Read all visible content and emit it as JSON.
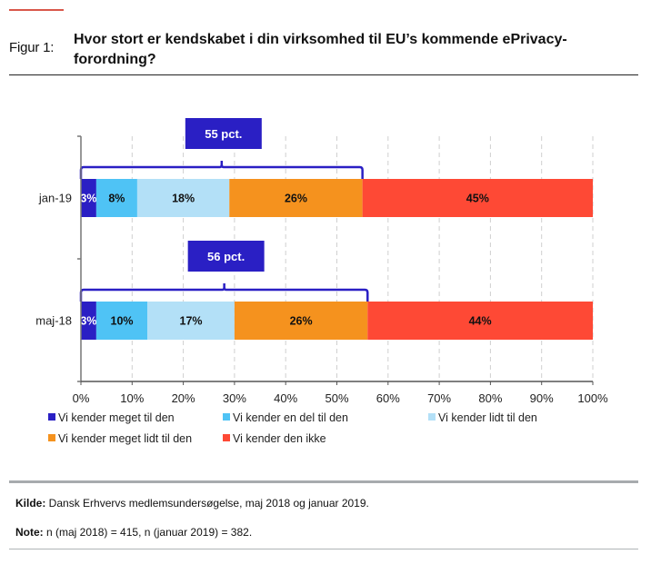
{
  "figure": {
    "label": "Figur 1:",
    "title": "Hvor stort er kendskabet i din virksomhed til EU’s kommende ePrivacy-forordning?",
    "title_line1": "Hvor stort er kendskabet i din virksomhed til EU’s kommende ePrivacy-",
    "title_line2": "forordning?"
  },
  "chart_data": {
    "type": "bar",
    "orientation": "horizontal",
    "stacked": true,
    "title": "Hvor stort er kendskabet i din virksomhed til EU’s kommende ePrivacy-forordning?",
    "xlabel": "",
    "ylabel": "",
    "xlim": [
      0,
      100
    ],
    "x_ticks": [
      "0%",
      "10%",
      "20%",
      "30%",
      "40%",
      "50%",
      "60%",
      "70%",
      "80%",
      "90%",
      "100%"
    ],
    "grid": "vertical-dashed",
    "categories": [
      "jan-19",
      "maj-18"
    ],
    "series": [
      {
        "name": "Vi kender meget til den",
        "color": "#2a1fc4",
        "label_color": "#ffffff",
        "values": [
          3,
          3
        ],
        "labels": [
          "3%",
          "3%"
        ]
      },
      {
        "name": "Vi kender en del til den",
        "color": "#4fc3f5",
        "label_color": "#111111",
        "values": [
          8,
          10
        ],
        "labels": [
          "8%",
          "10%"
        ]
      },
      {
        "name": "Vi kender lidt til den",
        "color": "#b3e0f7",
        "label_color": "#111111",
        "values": [
          18,
          17
        ],
        "labels": [
          "18%",
          "17%"
        ]
      },
      {
        "name": "Vi kender meget lidt til den",
        "color": "#f5921e",
        "label_color": "#111111",
        "values": [
          26,
          26
        ],
        "labels": [
          "26%",
          "26%"
        ]
      },
      {
        "name": "Vi kender den ikke",
        "color": "#fe4935",
        "label_color": "#111111",
        "values": [
          45,
          44
        ],
        "labels": [
          "45%",
          "44%"
        ]
      }
    ],
    "annotations": [
      {
        "category": "jan-19",
        "text": "55 pct.",
        "span": [
          0,
          55
        ]
      },
      {
        "category": "maj-18",
        "text": "56 pct.",
        "span": [
          0,
          56
        ]
      }
    ],
    "annotation_color": "#2a1fc4",
    "legend_position": "bottom"
  },
  "footer": {
    "source_label": "Kilde:",
    "source_text": " Dansk Erhvervs medlemsundersøgelse, maj 2018 og januar 2019.",
    "note_label": "Note:",
    "note_text": " n (maj 2018) = 415, n (januar 2019) = 382."
  }
}
